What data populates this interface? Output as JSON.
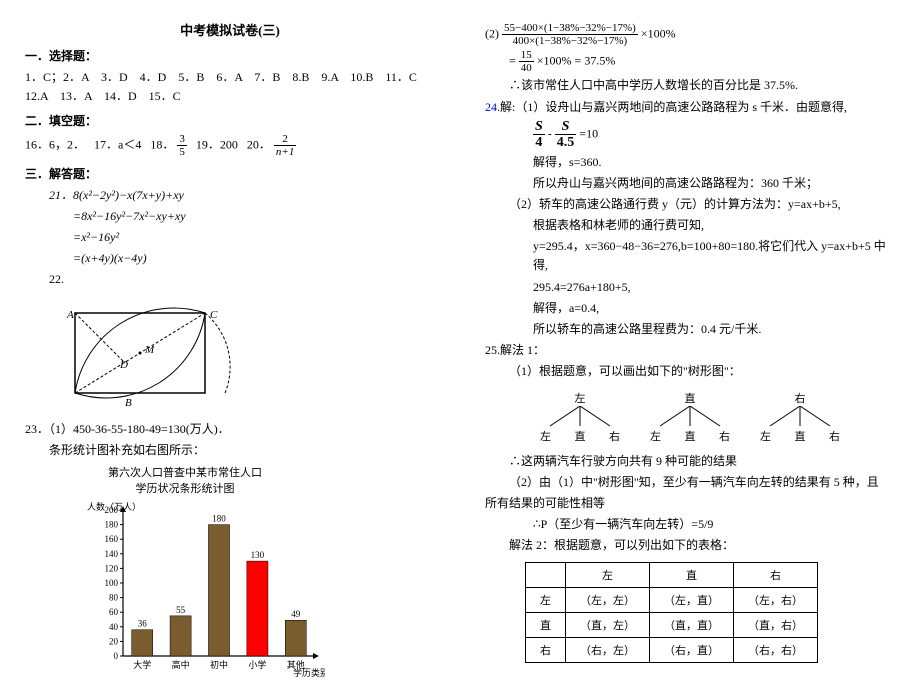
{
  "title": "中考模拟试卷(三)",
  "section1": {
    "header": "一．选择题：",
    "answers": "1．C；2．A　3．D　4．D　5．B　6．A　7．B　8.B　9.A　10.B　11．C　12.A　13．A　14．D　15．C"
  },
  "section2": {
    "header": "二．填空题：",
    "items": {
      "q16": "16．6，2．",
      "q17": "17．a＜4",
      "q18_label": "18．",
      "q18_num": "3",
      "q18_den": "5",
      "q19": "19．200",
      "q20_label": "20．",
      "q20_num": "2",
      "q20_den": "n+1"
    }
  },
  "section3": {
    "header": "三．解答题：",
    "q21": {
      "line1": "21．8(x²−2y²)−x(7x+y)+xy",
      "line2": "=8x²−16y²−7x²−xy+xy",
      "line3": "=x²−16y²",
      "line4": "=(x+4y)(x−4y)"
    },
    "q22_label": "22.",
    "geometry": {
      "labels": {
        "A": "A",
        "B": "B",
        "C": "C",
        "D": "D",
        "M": "M"
      }
    },
    "q23": {
      "line1": "23．（1）450-36-55-180-49=130(万人)．",
      "line2": "条形统计图补充如右图所示：",
      "chart_title1": "第六次人口普查中某市常住人口",
      "chart_title2": "学历状况条形统计图",
      "y_label": "人数（万人）",
      "x_label": "学历类别",
      "categories": [
        "大学",
        "高中",
        "初中",
        "小学",
        "其他"
      ],
      "values": [
        36,
        55,
        180,
        130,
        49
      ],
      "value_labels": [
        "36",
        "55",
        "180",
        "130",
        "49"
      ],
      "bar_colors": [
        "#7a5c2e",
        "#7a5c2e",
        "#7a5c2e",
        "#ff0000",
        "#7a5c2e"
      ],
      "y_max": 200,
      "y_step": 20,
      "chart_bg": "#ffffff",
      "axis_color": "#000000"
    }
  },
  "right": {
    "q23_2": {
      "expr_num": "55−400×(1−38%−32%−17%)",
      "expr_den": "400×(1−38%−32%−17%)",
      "times100": "×100%",
      "eq_num": "15",
      "eq_den": "40",
      "eq_tail": "×100% = 37.5%",
      "conclusion": "∴该市常住人口中高中学历人数增长的百分比是 37.5%."
    },
    "q24": {
      "lead": "解:（1）设舟山与嘉兴两地间的高速公路路程为 s 千米．由题意得,",
      "s_label": "S",
      "den1": "4",
      "den2": "4.5",
      "eq10": "=10",
      "solve1": "解得，s=360.",
      "solve2": "所以舟山与嘉兴两地间的高速公路路程为：360 千米；",
      "part2a": "（2）轿车的高速公路通行费 y（元）的计算方法为：y=ax+b+5,",
      "part2b": "根据表格和林老师的通行费可知,",
      "part2c": "y=295.4，x=360−48−36=276,b=100+80=180.将它们代入 y=ax+b+5 中得,",
      "part2d": "295.4=276a+180+5,",
      "part2e": "解得，a=0.4,",
      "part2f": "所以轿车的高速公路里程费为：0.4 元/千米."
    },
    "q25": {
      "header": "25.解法 1：",
      "line1": "（1）根据题意，可以画出如下的\"树形图\"：",
      "tree_roots": [
        "左",
        "直",
        "右"
      ],
      "tree_leaves": [
        "左",
        "直",
        "右"
      ],
      "conclusion1": "∴这两辆汽车行驶方向共有 9 种可能的结果",
      "part2_1": "（2）由（1）中\"树形图\"知，至少有一辆汽车向左转的结果有 5 种，且",
      "part2_2": "所有结果的可能性相等",
      "prob": "∴P（至少有一辆汽车向左转）=5/9",
      "method2": "解法 2：根据题意，可以列出如下的表格："
    },
    "table": {
      "headers": [
        "",
        "左",
        "直",
        "右"
      ],
      "rows": [
        [
          "左",
          "（左，左）",
          "（左，直）",
          "（左，右）"
        ],
        [
          "直",
          "（直，左）",
          "（直，直）",
          "（直，右）"
        ],
        [
          "右",
          "（右，左）",
          "（右，直）",
          "（右，右）"
        ]
      ]
    }
  }
}
